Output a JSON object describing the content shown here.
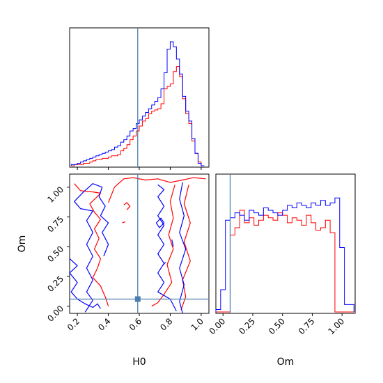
{
  "chart_data": {
    "type": "corner",
    "parameters": [
      "H0",
      "Om"
    ],
    "truth": {
      "H0": 0.59,
      "Om": 0.06
    },
    "colors": {
      "truth": "#4c7fb0",
      "red": "#ff0000",
      "blue": "#0000ff"
    },
    "axes": {
      "H0": {
        "label": "H0",
        "range": [
          0.15,
          1.05
        ],
        "ticks": [
          "0.2",
          "0.4",
          "0.6",
          "0.8",
          "1.0"
        ],
        "tick_values": [
          0.2,
          0.4,
          0.6,
          0.8,
          1.0
        ]
      },
      "Om": {
        "label": "Om",
        "range": [
          -0.06,
          1.11
        ],
        "ticks": [
          "0.00",
          "0.25",
          "0.50",
          "0.75",
          "1.00"
        ],
        "tick_values": [
          0.0,
          0.25,
          0.5,
          0.75,
          1.0
        ]
      }
    },
    "histograms": {
      "H0": {
        "bin_edges": [
          0.16,
          0.18,
          0.2,
          0.22,
          0.24,
          0.26,
          0.28,
          0.3,
          0.32,
          0.34,
          0.36,
          0.38,
          0.4,
          0.42,
          0.44,
          0.46,
          0.48,
          0.5,
          0.52,
          0.54,
          0.56,
          0.58,
          0.6,
          0.62,
          0.64,
          0.66,
          0.68,
          0.7,
          0.72,
          0.74,
          0.76,
          0.78,
          0.8,
          0.82,
          0.84,
          0.86,
          0.88,
          0.9,
          0.92,
          0.94,
          0.96,
          0.98,
          1.0,
          1.02
        ],
        "series": [
          {
            "color": "red",
            "counts": [
              0.0,
              0.01,
              0.01,
              0.01,
              0.02,
              0.02,
              0.03,
              0.04,
              0.05,
              0.05,
              0.06,
              0.06,
              0.07,
              0.08,
              0.08,
              0.09,
              0.12,
              0.14,
              0.17,
              0.21,
              0.24,
              0.28,
              0.32,
              0.36,
              0.38,
              0.42,
              0.44,
              0.45,
              0.46,
              0.5,
              0.62,
              0.64,
              0.66,
              0.76,
              0.8,
              0.72,
              0.54,
              0.42,
              0.34,
              0.2,
              0.1,
              0.03,
              0.0
            ]
          },
          {
            "color": "blue",
            "counts": [
              0.01,
              0.01,
              0.02,
              0.03,
              0.04,
              0.05,
              0.06,
              0.07,
              0.08,
              0.09,
              0.1,
              0.11,
              0.12,
              0.13,
              0.15,
              0.16,
              0.19,
              0.21,
              0.24,
              0.28,
              0.3,
              0.34,
              0.37,
              0.4,
              0.43,
              0.46,
              0.49,
              0.52,
              0.55,
              0.62,
              0.75,
              0.94,
              1.0,
              0.96,
              0.86,
              0.74,
              0.56,
              0.44,
              0.36,
              0.22,
              0.1,
              0.02,
              0.0
            ]
          }
        ]
      },
      "Om": {
        "bin_edges": [
          -0.06,
          -0.02,
          0.02,
          0.06,
          0.1,
          0.14,
          0.18,
          0.22,
          0.26,
          0.3,
          0.34,
          0.38,
          0.42,
          0.46,
          0.5,
          0.54,
          0.58,
          0.62,
          0.66,
          0.7,
          0.74,
          0.78,
          0.82,
          0.86,
          0.9,
          0.94,
          0.98,
          1.02,
          1.06,
          1.1
        ],
        "series": [
          {
            "color": "red",
            "counts": [
              0.0,
              0.0,
              0.0,
              0.62,
              0.68,
              0.82,
              0.72,
              0.76,
              0.7,
              0.74,
              0.78,
              0.76,
              0.74,
              0.8,
              0.78,
              0.72,
              0.76,
              0.74,
              0.7,
              0.78,
              0.72,
              0.66,
              0.68,
              0.74,
              0.64,
              0.0,
              0.0,
              0.0,
              0.0
            ]
          },
          {
            "color": "blue",
            "counts": [
              0.02,
              0.18,
              0.74,
              0.76,
              0.8,
              0.78,
              0.74,
              0.82,
              0.8,
              0.78,
              0.84,
              0.82,
              0.8,
              0.78,
              0.82,
              0.86,
              0.84,
              0.88,
              0.86,
              0.84,
              0.88,
              0.86,
              0.9,
              0.86,
              0.88,
              0.92,
              0.52,
              0.06,
              0.06
            ]
          }
        ]
      }
    },
    "contours": [
      {
        "color": "red",
        "lines": [
          [
            [
              0.18,
              1.03
            ],
            [
              0.22,
              0.97
            ],
            [
              0.3,
              0.96
            ],
            [
              0.35,
              0.95
            ],
            [
              0.32,
              0.91
            ],
            [
              0.28,
              0.86
            ],
            [
              0.31,
              0.79
            ],
            [
              0.35,
              0.73
            ],
            [
              0.31,
              0.65
            ],
            [
              0.34,
              0.57
            ],
            [
              0.31,
              0.48
            ],
            [
              0.35,
              0.4
            ],
            [
              0.33,
              0.32
            ],
            [
              0.3,
              0.24
            ],
            [
              0.35,
              0.17
            ],
            [
              0.38,
              0.08
            ],
            [
              0.4,
              0.0
            ]
          ],
          [
            [
              0.4,
              0.87
            ],
            [
              0.44,
              1.0
            ],
            [
              0.5,
              1.07
            ],
            [
              0.56,
              1.08
            ],
            [
              0.64,
              1.06
            ],
            [
              0.72,
              1.07
            ],
            [
              0.8,
              1.04
            ],
            [
              0.88,
              1.06
            ],
            [
              0.95,
              1.08
            ],
            [
              1.03,
              1.07
            ]
          ],
          [
            [
              0.83,
              1.02
            ],
            [
              0.8,
              0.88
            ],
            [
              0.82,
              0.74
            ],
            [
              0.79,
              0.6
            ],
            [
              0.82,
              0.48
            ],
            [
              0.78,
              0.35
            ],
            [
              0.81,
              0.2
            ],
            [
              0.76,
              0.1
            ],
            [
              0.72,
              0.03
            ],
            [
              0.68,
              0.0
            ]
          ],
          [
            [
              0.92,
              1.02
            ],
            [
              0.89,
              0.86
            ],
            [
              0.93,
              0.7
            ],
            [
              0.89,
              0.54
            ],
            [
              0.93,
              0.38
            ],
            [
              0.88,
              0.22
            ],
            [
              0.9,
              0.08
            ],
            [
              0.87,
              -0.03
            ]
          ],
          [
            [
              0.5,
              0.85
            ],
            [
              0.52,
              0.87
            ],
            [
              0.54,
              0.84
            ],
            [
              0.52,
              0.81
            ]
          ],
          [
            [
              0.49,
              0.7
            ],
            [
              0.51,
              0.71
            ]
          ]
        ]
      },
      {
        "color": "blue",
        "lines": [
          [
            [
              0.15,
              0.4
            ],
            [
              0.2,
              0.34
            ],
            [
              0.15,
              0.28
            ],
            [
              0.2,
              0.2
            ],
            [
              0.16,
              0.12
            ],
            [
              0.2,
              0.06
            ],
            [
              0.25,
              0.02
            ],
            [
              0.3,
              -0.01
            ],
            [
              0.33,
              0.02
            ],
            [
              0.35,
              -0.02
            ]
          ],
          [
            [
              0.25,
              -0.05
            ],
            [
              0.3,
              0.05
            ],
            [
              0.26,
              0.12
            ],
            [
              0.3,
              0.22
            ],
            [
              0.26,
              0.32
            ],
            [
              0.3,
              0.42
            ],
            [
              0.26,
              0.52
            ],
            [
              0.3,
              0.62
            ],
            [
              0.26,
              0.72
            ],
            [
              0.3,
              0.8
            ],
            [
              0.22,
              0.82
            ],
            [
              0.18,
              0.88
            ],
            [
              0.24,
              0.96
            ],
            [
              0.3,
              1.03
            ],
            [
              0.36,
              1.0
            ],
            [
              0.34,
              0.92
            ],
            [
              0.38,
              0.84
            ],
            [
              0.35,
              0.76
            ],
            [
              0.4,
              0.7
            ],
            [
              0.36,
              0.62
            ],
            [
              0.4,
              0.52
            ],
            [
              0.37,
              0.42
            ]
          ],
          [
            [
              0.72,
              1.02
            ],
            [
              0.76,
              0.98
            ],
            [
              0.72,
              0.92
            ],
            [
              0.76,
              0.84
            ],
            [
              0.72,
              0.76
            ],
            [
              0.76,
              0.68
            ],
            [
              0.72,
              0.6
            ],
            [
              0.76,
              0.52
            ],
            [
              0.72,
              0.44
            ],
            [
              0.76,
              0.36
            ],
            [
              0.72,
              0.28
            ],
            [
              0.76,
              0.2
            ],
            [
              0.72,
              0.12
            ],
            [
              0.8,
              0.06
            ],
            [
              0.84,
              -0.04
            ]
          ],
          [
            [
              0.88,
              1.04
            ],
            [
              0.86,
              0.9
            ],
            [
              0.89,
              0.76
            ],
            [
              0.86,
              0.62
            ],
            [
              0.9,
              0.48
            ],
            [
              0.86,
              0.32
            ],
            [
              0.89,
              0.18
            ],
            [
              0.86,
              0.04
            ],
            [
              0.88,
              -0.06
            ]
          ],
          [
            [
              0.71,
              0.7
            ],
            [
              0.74,
              0.74
            ],
            [
              0.76,
              0.7
            ],
            [
              0.73,
              0.66
            ],
            [
              0.71,
              0.7
            ]
          ],
          [
            [
              0.81,
              0.56
            ],
            [
              0.82,
              0.5
            ]
          ],
          [
            [
              0.75,
              0.34
            ],
            [
              0.77,
              0.37
            ]
          ]
        ]
      }
    ]
  }
}
